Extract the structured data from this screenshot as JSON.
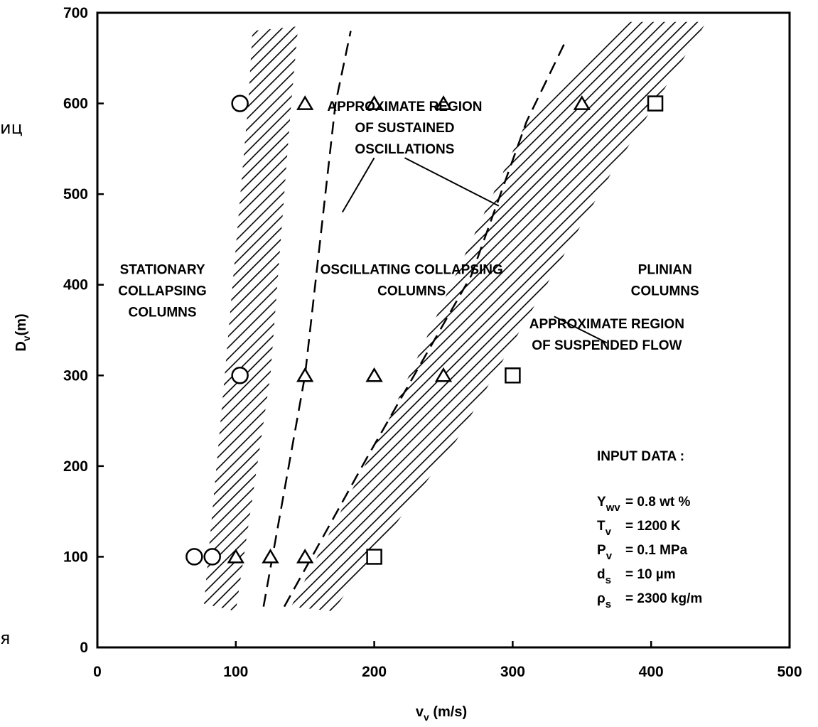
{
  "chart_data": {
    "type": "scatter",
    "xlabel": "v",
    "xlabel_sub": "v",
    "xlabel_unit": "(m/s)",
    "ylabel": "D",
    "ylabel_sub": "v",
    "ylabel_unit": "(m)",
    "xlim": [
      0,
      500
    ],
    "ylim": [
      0,
      700
    ],
    "xticks": [
      "0",
      "100",
      "200",
      "300",
      "400",
      "500"
    ],
    "yticks": [
      "0",
      "100",
      "200",
      "300",
      "400",
      "500",
      "600",
      "700"
    ],
    "grid": false,
    "series": [
      {
        "marker": "circle",
        "points": [
          [
            70,
            100
          ],
          [
            83,
            100
          ],
          [
            103,
            300
          ],
          [
            103,
            600
          ]
        ]
      },
      {
        "marker": "triangle",
        "points": [
          [
            100,
            100
          ],
          [
            125,
            100
          ],
          [
            150,
            100
          ],
          [
            150,
            300
          ],
          [
            200,
            300
          ],
          [
            250,
            300
          ],
          [
            150,
            600
          ],
          [
            200,
            600
          ],
          [
            250,
            600
          ],
          [
            350,
            600
          ]
        ]
      },
      {
        "marker": "square",
        "points": [
          [
            200,
            100
          ],
          [
            300,
            300
          ],
          [
            403,
            600
          ]
        ]
      }
    ],
    "hatched_bands": [
      {
        "left": [
          [
            77,
            48
          ],
          [
            92,
            300
          ],
          [
            109,
            600
          ],
          [
            112,
            680
          ]
        ],
        "right": [
          [
            100,
            40
          ],
          [
            125,
            300
          ],
          [
            140,
            600
          ],
          [
            145,
            685
          ]
        ]
      },
      {
        "left": [
          [
            140,
            45
          ],
          [
            210,
            250
          ],
          [
            310,
            580
          ],
          [
            380,
            690
          ]
        ],
        "right": [
          [
            170,
            40
          ],
          [
            260,
            230
          ],
          [
            370,
            520
          ],
          [
            440,
            690
          ]
        ]
      }
    ],
    "dashed_lines": [
      [
        [
          120,
          45
        ],
        [
          150,
          300
        ],
        [
          172,
          600
        ],
        [
          183,
          680
        ]
      ],
      [
        [
          135,
          45
        ],
        [
          195,
          210
        ],
        [
          270,
          410
        ],
        [
          310,
          580
        ],
        [
          337,
          665
        ]
      ]
    ],
    "region_labels": [
      {
        "lines": [
          "STATIONARY",
          "COLLAPSING",
          "COLUMNS"
        ],
        "x": 47,
        "y": 412
      },
      {
        "lines": [
          "OSCILLATING COLLAPSING",
          "COLUMNS"
        ],
        "x": 227,
        "y": 412
      },
      {
        "lines": [
          "PLINIAN",
          "COLUMNS"
        ],
        "x": 410,
        "y": 412
      }
    ],
    "annotations": [
      {
        "lines": [
          "APPROXIMATE REGION",
          "OF SUSTAINED",
          "OSCILLATIONS"
        ],
        "x": 222,
        "y": 592,
        "leaders": [
          [
            [
              200,
              540
            ],
            [
              177,
              480
            ]
          ],
          [
            [
              222,
              540
            ],
            [
              290,
              487
            ]
          ]
        ]
      },
      {
        "lines": [
          "APPROXIMATE REGION",
          "OF SUSPENDED FLOW"
        ],
        "x": 368,
        "y": 352,
        "leaders": [
          [
            [
              368,
              336
            ],
            [
              330,
              365
            ]
          ]
        ]
      }
    ],
    "input_data": {
      "title": "INPUT DATA :",
      "rows": [
        {
          "sym": "Y",
          "sub": "wv",
          "val": "= 0.8  wt %"
        },
        {
          "sym": "T",
          "sub": "v",
          "val": "= 1200 K"
        },
        {
          "sym": "P",
          "sub": "v",
          "val": "= 0.1 MPa"
        },
        {
          "sym": "d",
          "sub": "s",
          "val": "= 10 µm"
        },
        {
          "sym": "ρ",
          "sub": "s",
          "val": "= 2300 kg/m"
        }
      ]
    }
  },
  "cropped_text": {
    "top": "иц",
    "bottom": "я"
  }
}
